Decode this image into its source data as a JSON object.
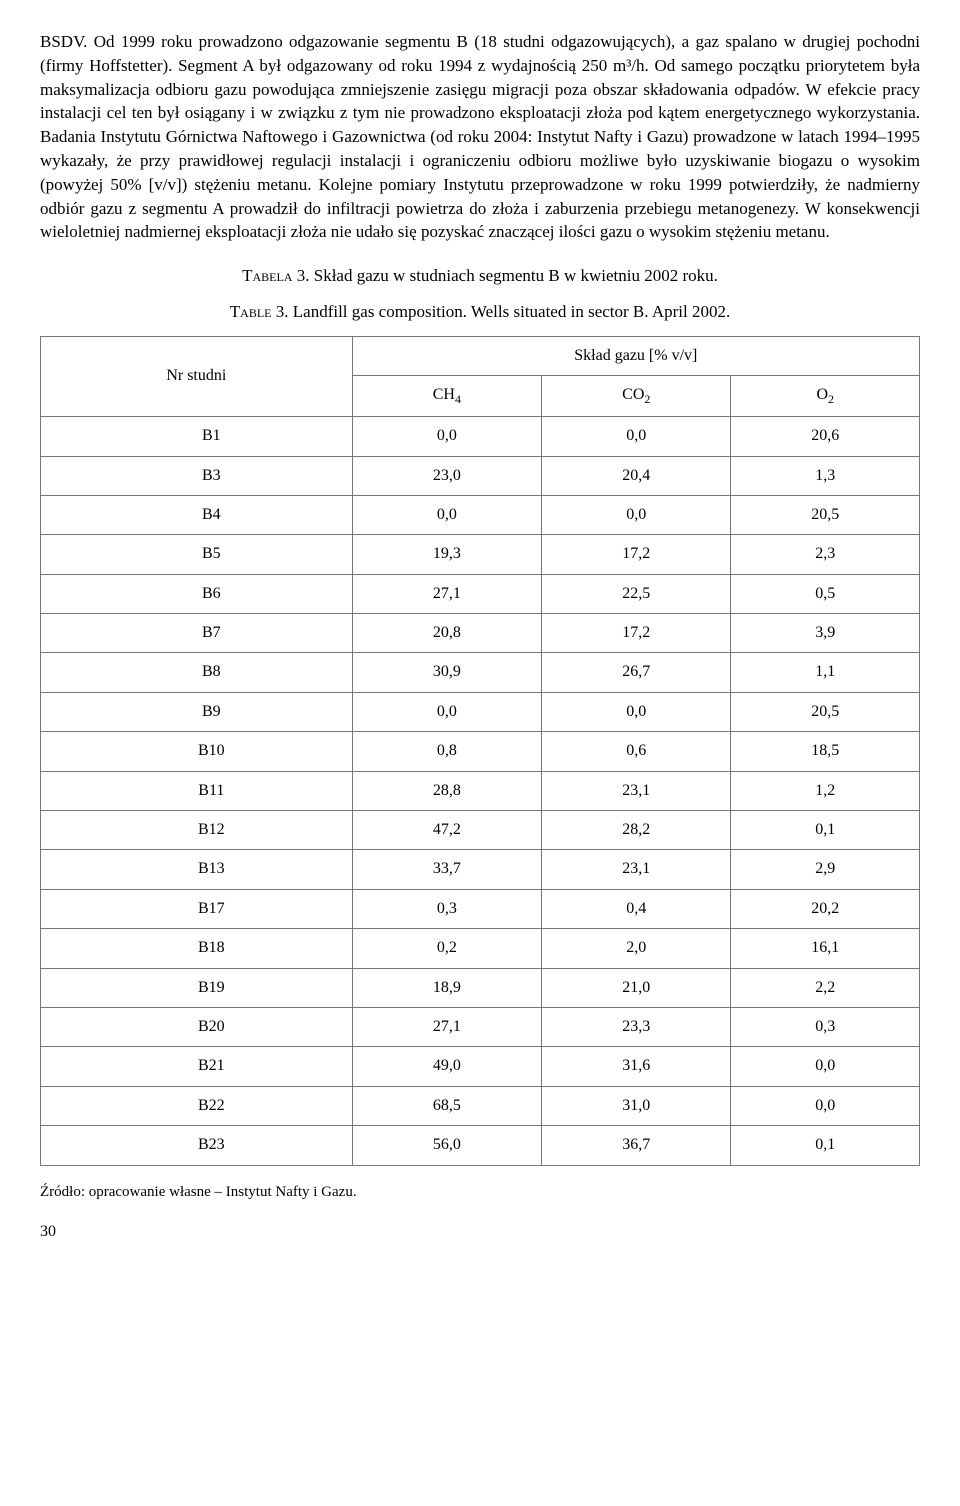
{
  "paragraph": "BSDV. Od 1999 roku prowadzono odgazowanie segmentu B (18 studni odgazowujących), a gaz spalano w drugiej pochodni (firmy Hoffstetter). Segment A był odgazowany od roku 1994 z wydajnością 250 m³/h. Od samego początku priorytetem była maksymalizacja odbioru gazu powodująca zmniejszenie zasięgu migracji poza obszar składowania odpadów. W efekcie pracy instalacji cel ten był osiągany i w związku z tym nie prowadzono eksploatacji złoża pod kątem energetycznego wykorzystania. Badania Instytutu Górnictwa Naftowego i Gazownictwa (od roku 2004: Instytut Nafty i Gazu) prowadzone w latach 1994–1995 wykazały, że przy prawidłowej regulacji instalacji i ograniczeniu odbioru możliwe było uzyskiwanie biogazu o wysokim (powyżej 50% [v/v]) stężeniu metanu. Kolejne pomiary Instytutu przeprowadzone w roku 1999 potwierdziły, że nadmierny odbiór gazu z segmentu A prowadził do infiltracji powietrza do złoża i zaburzenia przebiegu metanogenezy. W konsekwencji wieloletniej nadmiernej eksploatacji złoża nie udało się pozyskać znaczącej ilości gazu o wysokim stężeniu metanu.",
  "caption1": {
    "label": "Tabela 3.",
    "text": " Skład gazu w studniach segmentu B w kwietniu 2002 roku."
  },
  "caption2": {
    "label": "Table 3.",
    "text": " Landfill gas composition. Wells situated in sector B. April 2002."
  },
  "table": {
    "header_rowlabel": "Nr studni",
    "header_group": "Skład gazu [% v/v]",
    "col1": "CH",
    "col1_sub": "4",
    "col2": "CO",
    "col2_sub": "2",
    "col3": "O",
    "col3_sub": "2",
    "rows": [
      {
        "label": "B1",
        "ch4": "0,0",
        "co2": "0,0",
        "o2": "20,6"
      },
      {
        "label": "B3",
        "ch4": "23,0",
        "co2": "20,4",
        "o2": "1,3"
      },
      {
        "label": "B4",
        "ch4": "0,0",
        "co2": "0,0",
        "o2": "20,5"
      },
      {
        "label": "B5",
        "ch4": "19,3",
        "co2": "17,2",
        "o2": "2,3"
      },
      {
        "label": "B6",
        "ch4": "27,1",
        "co2": "22,5",
        "o2": "0,5"
      },
      {
        "label": "B7",
        "ch4": "20,8",
        "co2": "17,2",
        "o2": "3,9"
      },
      {
        "label": "B8",
        "ch4": "30,9",
        "co2": "26,7",
        "o2": "1,1"
      },
      {
        "label": "B9",
        "ch4": "0,0",
        "co2": "0,0",
        "o2": "20,5"
      },
      {
        "label": "B10",
        "ch4": "0,8",
        "co2": "0,6",
        "o2": "18,5"
      },
      {
        "label": "B11",
        "ch4": "28,8",
        "co2": "23,1",
        "o2": "1,2"
      },
      {
        "label": "B12",
        "ch4": "47,2",
        "co2": "28,2",
        "o2": "0,1"
      },
      {
        "label": "B13",
        "ch4": "33,7",
        "co2": "23,1",
        "o2": "2,9"
      },
      {
        "label": "B17",
        "ch4": "0,3",
        "co2": "0,4",
        "o2": "20,2"
      },
      {
        "label": "B18",
        "ch4": "0,2",
        "co2": "2,0",
        "o2": "16,1"
      },
      {
        "label": "B19",
        "ch4": "18,9",
        "co2": "21,0",
        "o2": "2,2"
      },
      {
        "label": "B20",
        "ch4": "27,1",
        "co2": "23,3",
        "o2": "0,3"
      },
      {
        "label": "B21",
        "ch4": "49,0",
        "co2": "31,6",
        "o2": "0,0"
      },
      {
        "label": "B22",
        "ch4": "68,5",
        "co2": "31,0",
        "o2": "0,0"
      },
      {
        "label": "B23",
        "ch4": "56,0",
        "co2": "36,7",
        "o2": "0,1"
      }
    ]
  },
  "source": "Źródło: opracowanie własne – Instytut Nafty i Gazu.",
  "page_number": "30",
  "style": {
    "font_family": "Times New Roman",
    "body_font_size_pt": 13,
    "caption_font_size_pt": 13,
    "table_font_size_pt": 12,
    "text_color": "#000000",
    "background_color": "#ffffff",
    "table_border_color": "#777777"
  }
}
